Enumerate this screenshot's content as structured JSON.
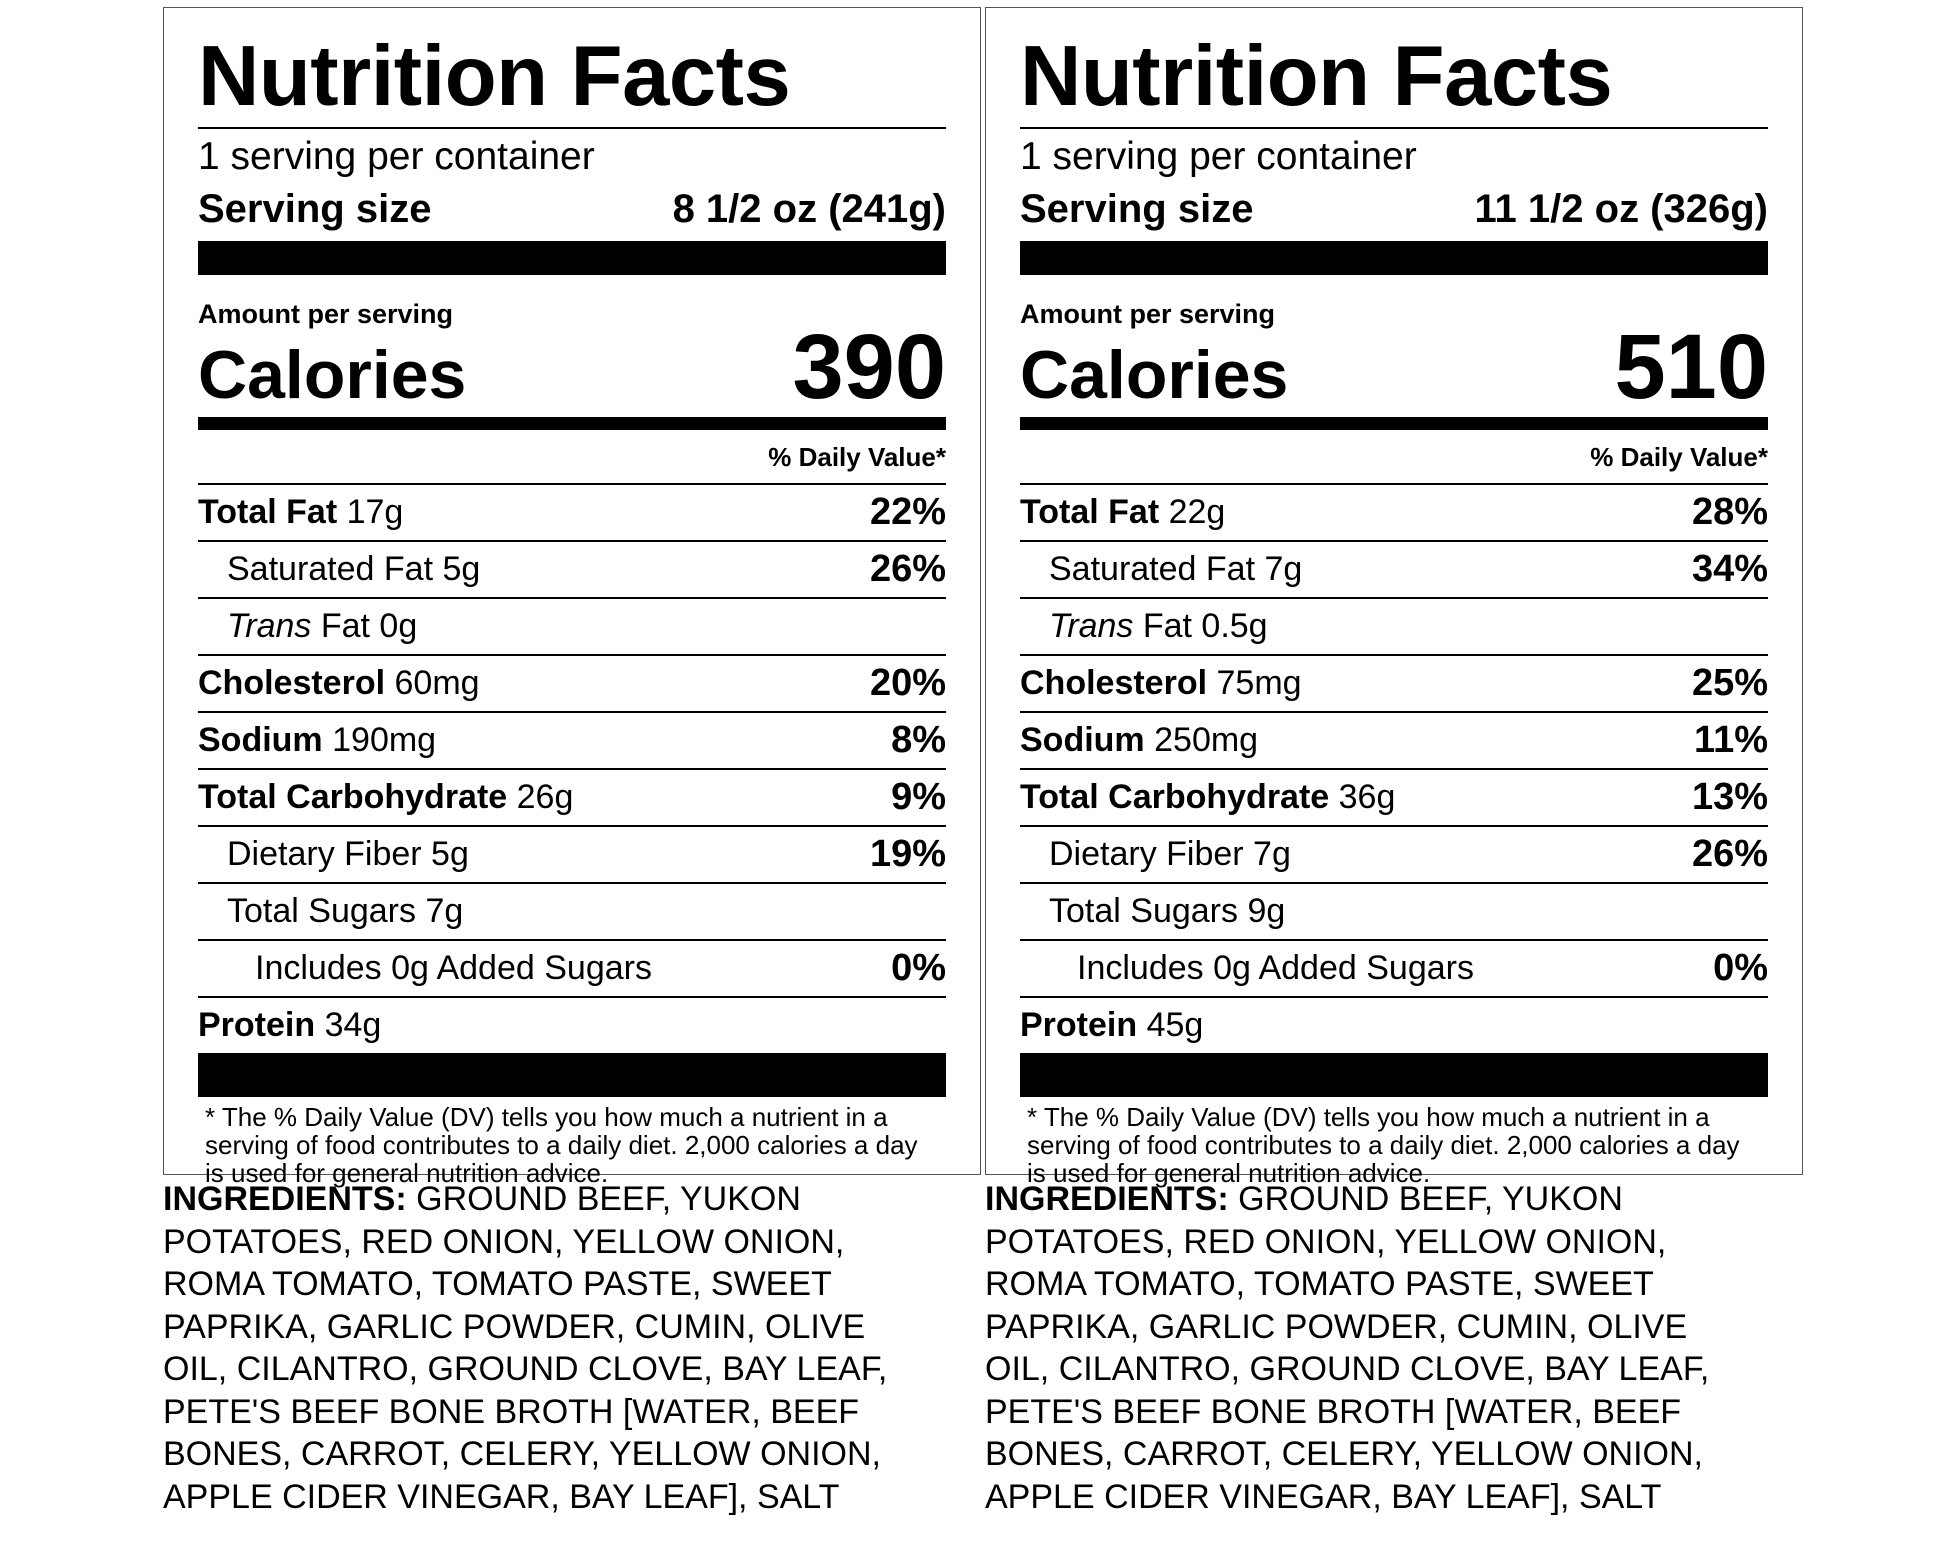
{
  "labels": [
    {
      "title": "Nutrition Facts",
      "servings_per_container": "1 serving per container",
      "serving_size_label": "Serving size",
      "serving_size_value": "8 1/2 oz (241g)",
      "amount_per_serving": "Amount per serving",
      "calories_label": "Calories",
      "calories_value": "390",
      "dv_header": "% Daily Value*",
      "nutrients": [
        {
          "name": "Total Fat",
          "amount": "17g",
          "dv": "22%"
        },
        {
          "name": "Saturated Fat 5g",
          "amount": "",
          "dv": "26%"
        },
        {
          "name": "Trans",
          "amount": "Fat 0g",
          "dv": ""
        },
        {
          "name": "Cholesterol",
          "amount": "60mg",
          "dv": "20%"
        },
        {
          "name": "Sodium",
          "amount": "190mg",
          "dv": "8%"
        },
        {
          "name": "Total Carbohydrate",
          "amount": "26g",
          "dv": "9%"
        },
        {
          "name": "Dietary Fiber 5g",
          "amount": "",
          "dv": "19%"
        },
        {
          "name": "Total Sugars 7g",
          "amount": "",
          "dv": ""
        },
        {
          "name": "Includes 0g Added Sugars",
          "amount": "",
          "dv": "0%"
        },
        {
          "name": "Protein",
          "amount": "34g",
          "dv": ""
        }
      ],
      "footnote": "* The % Daily Value (DV) tells you how much a nutrient in a serving of food contributes to a daily diet. 2,000 calories a day is used for general nutrition advice.",
      "ingredients_label": "INGREDIENTS:",
      "ingredients_text": "GROUND BEEF, YUKON POTATOES, RED ONION, YELLOW ONION, ROMA TOMATO, TOMATO PASTE, SWEET PAPRIKA, GARLIC POWDER, CUMIN, OLIVE OIL, CILANTRO, GROUND CLOVE, BAY LEAF, PETE'S BEEF BONE BROTH [WATER, BEEF BONES, CARROT, CELERY, YELLOW ONION, APPLE CIDER VINEGAR, BAY LEAF], SALT"
    },
    {
      "title": "Nutrition Facts",
      "servings_per_container": "1 serving per container",
      "serving_size_label": "Serving size",
      "serving_size_value": "11 1/2 oz (326g)",
      "amount_per_serving": "Amount per serving",
      "calories_label": "Calories",
      "calories_value": "510",
      "dv_header": "% Daily Value*",
      "nutrients": [
        {
          "name": "Total Fat",
          "amount": "22g",
          "dv": "28%"
        },
        {
          "name": "Saturated Fat 7g",
          "amount": "",
          "dv": "34%"
        },
        {
          "name": "Trans",
          "amount": "Fat 0.5g",
          "dv": ""
        },
        {
          "name": "Cholesterol",
          "amount": "75mg",
          "dv": "25%"
        },
        {
          "name": "Sodium",
          "amount": "250mg",
          "dv": "11%"
        },
        {
          "name": "Total Carbohydrate",
          "amount": "36g",
          "dv": "13%"
        },
        {
          "name": "Dietary Fiber 7g",
          "amount": "",
          "dv": "26%"
        },
        {
          "name": "Total Sugars 9g",
          "amount": "",
          "dv": ""
        },
        {
          "name": "Includes 0g Added Sugars",
          "amount": "",
          "dv": "0%"
        },
        {
          "name": "Protein",
          "amount": "45g",
          "dv": ""
        }
      ],
      "footnote": "* The % Daily Value (DV) tells you how much a nutrient in a serving of food contributes to a daily diet. 2,000 calories a day is used for general nutrition advice.",
      "ingredients_label": "INGREDIENTS:",
      "ingredients_text": "GROUND BEEF, YUKON POTATOES, RED ONION, YELLOW ONION, ROMA TOMATO, TOMATO PASTE, SWEET PAPRIKA, GARLIC POWDER, CUMIN, OLIVE OIL, CILANTRO, GROUND CLOVE, BAY LEAF, PETE'S BEEF BONE BROTH [WATER, BEEF BONES, CARROT, CELERY, YELLOW ONION, APPLE CIDER VINEGAR, BAY LEAF], SALT"
    }
  ]
}
